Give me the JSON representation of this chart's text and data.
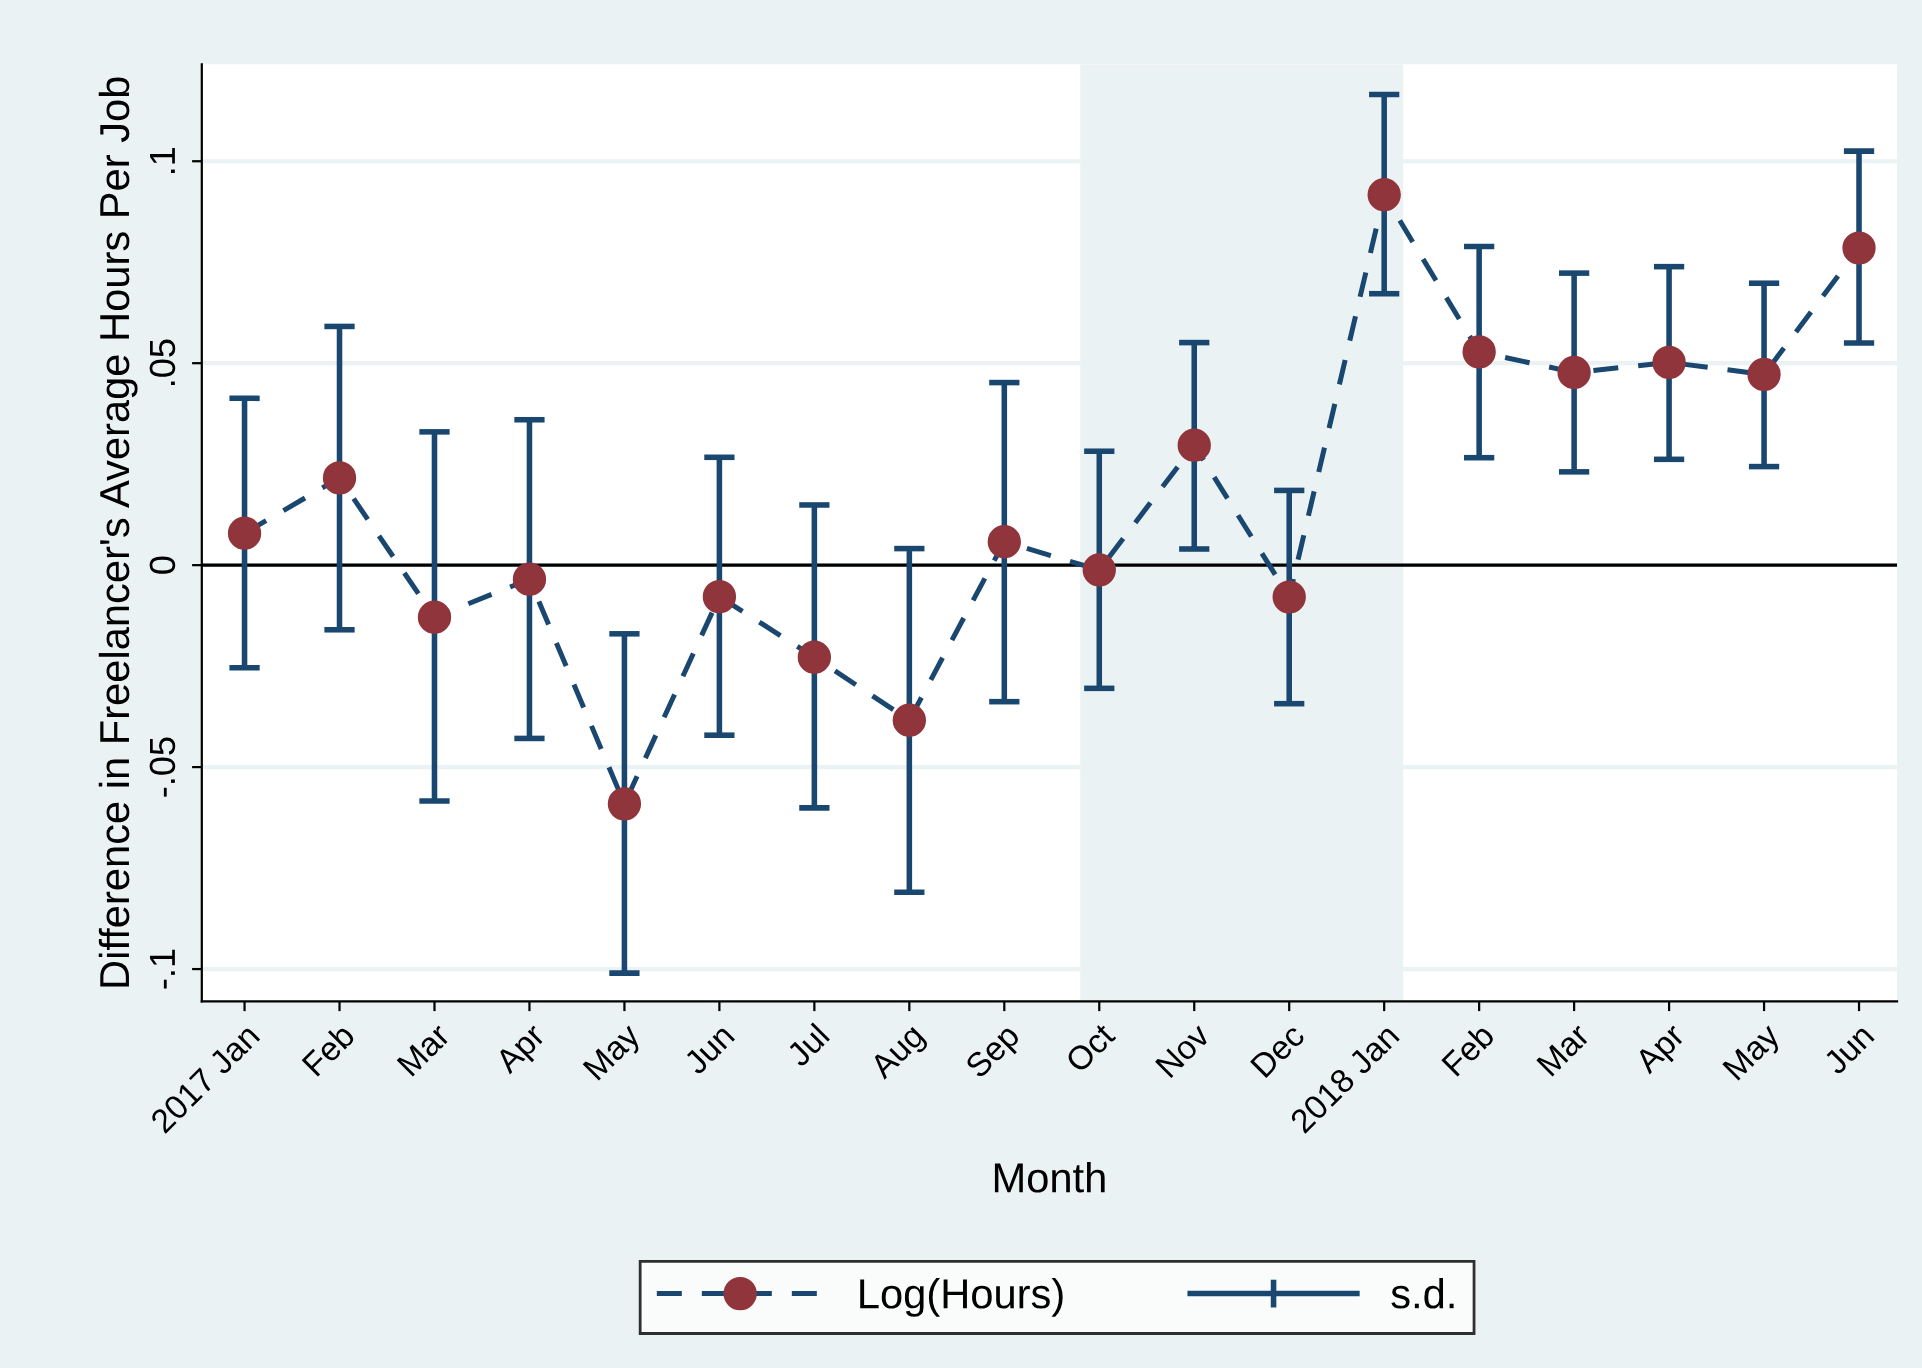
{
  "chart_data": {
    "type": "line",
    "xlabel": "Month",
    "ylabel": "Difference in Freelancer's Average Hours Per Job",
    "categories": [
      "2017 Jan",
      "Feb",
      "Mar",
      "Apr",
      "May",
      "Jun",
      "Jul",
      "Aug",
      "Sep",
      "Oct",
      "Nov",
      "Dec",
      "2018 Jan",
      "Feb",
      "Mar",
      "Apr",
      "May",
      "Jun"
    ],
    "series": [
      {
        "name": "Log(Hours)",
        "color": "#1a476f",
        "colors": [
          "#90353b",
          "#90353b",
          "#90353b",
          "#90353b",
          "#90353b",
          "#90353b",
          "#90353b",
          "#90353b",
          "#90353b",
          "#90353b",
          "#90353b",
          "#90353b",
          "#90353b",
          "#90353b",
          "#90353b",
          "#90353b",
          "#90353b",
          "#90353b"
        ],
        "values": [
          0.0079,
          0.0216,
          -0.0129,
          -0.0035,
          -0.0591,
          -0.0078,
          -0.0228,
          -0.0384,
          0.0058,
          -0.0012,
          0.0297,
          -0.0079,
          0.0917,
          0.0528,
          0.0477,
          0.0502,
          0.0472,
          0.0785
        ],
        "errors": [
          [
            -0.0254,
            0.0413
          ],
          [
            -0.016,
            0.0591
          ],
          [
            -0.0584,
            0.033
          ],
          [
            -0.0429,
            0.036
          ],
          [
            -0.101,
            -0.017
          ],
          [
            -0.0421,
            0.0267
          ],
          [
            -0.0601,
            0.0149
          ],
          [
            -0.081,
            0.0041
          ],
          [
            -0.0338,
            0.0452
          ],
          [
            -0.0305,
            0.0282
          ],
          [
            0.004,
            0.0551
          ],
          [
            -0.0343,
            0.0185
          ],
          [
            0.0672,
            0.1165
          ],
          [
            0.0266,
            0.0789
          ],
          [
            0.0231,
            0.0723
          ],
          [
            0.0262,
            0.0739
          ],
          [
            0.0244,
            0.0698
          ],
          [
            0.055,
            0.1025
          ]
        ]
      }
    ],
    "annotations": [
      "s.d."
    ],
    "ylim": [
      -0.108,
      0.124
    ],
    "yticks": [
      {
        "value": -0.1,
        "label": "-.1"
      },
      {
        "value": -0.05,
        "label": "-.05"
      },
      {
        "value": 0,
        "label": "0"
      },
      {
        "value": 0.05,
        "label": ".05"
      },
      {
        "value": 0.1,
        "label": ".1"
      }
    ],
    "ref_lines": [
      {
        "axis": "y",
        "value": 0,
        "label": null,
        "color": "#000000"
      }
    ],
    "bands": [
      {
        "axis": "x",
        "from": "Oct",
        "to": "2018 Jan",
        "label": null,
        "color": "#eaf2f3"
      }
    ],
    "grid": "y",
    "legend": "bottom",
    "marker": "circle",
    "line_style": "dashed"
  }
}
